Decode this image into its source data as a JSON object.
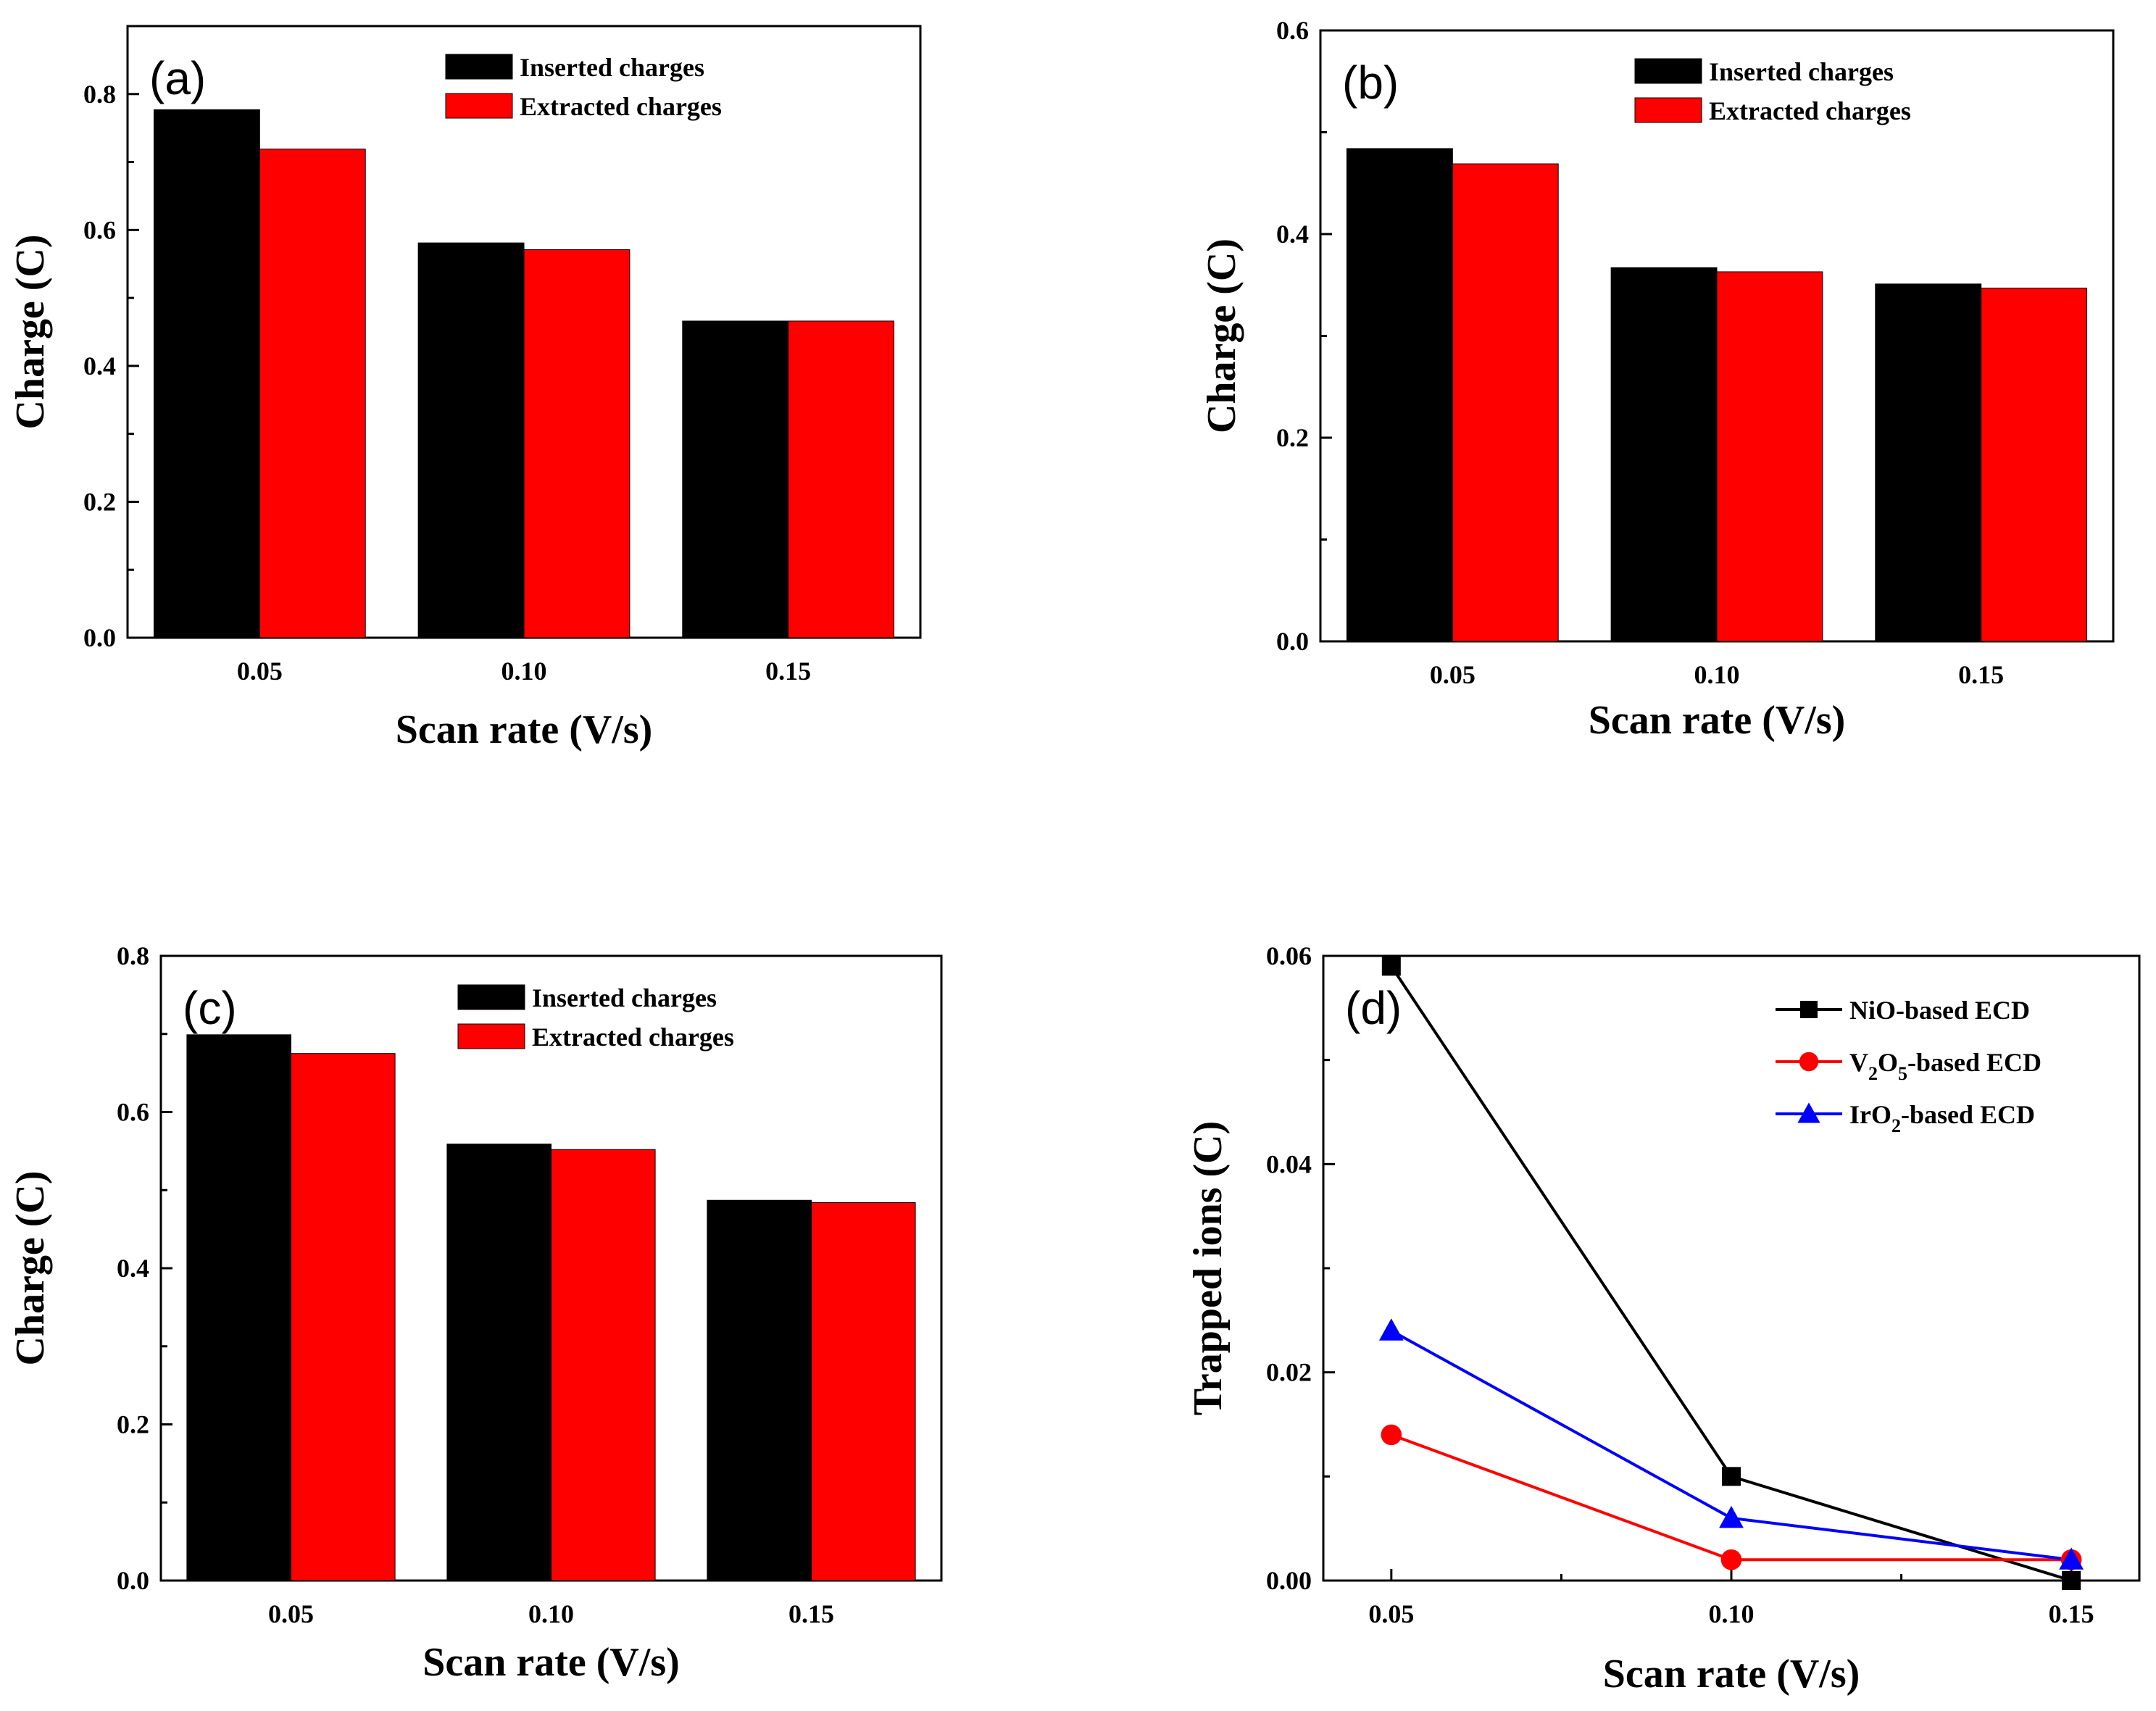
{
  "chart_data": [
    {
      "panel": "(a)",
      "type": "bar",
      "categories": [
        "0.05",
        "0.10",
        "0.15"
      ],
      "series": [
        {
          "name": "Inserted charges",
          "color": "#000000",
          "values": [
            0.777,
            0.581,
            0.466
          ]
        },
        {
          "name": "Extracted charges",
          "color": "#ff0000",
          "values": [
            0.719,
            0.571,
            0.466
          ]
        }
      ],
      "xlabel": "Scan rate (V/s)",
      "ylabel": "Charge (C)",
      "ylim": [
        0,
        0.9
      ],
      "yticks": [
        0.0,
        0.2,
        0.4,
        0.6,
        0.8
      ],
      "ytick_labels": [
        "0.0",
        "0.2",
        "0.4",
        "0.6",
        "0.8"
      ],
      "legend": "top"
    },
    {
      "panel": "(b)",
      "type": "bar",
      "categories": [
        "0.05",
        "0.10",
        "0.15"
      ],
      "series": [
        {
          "name": "Inserted charges",
          "color": "#000000",
          "values": [
            0.484,
            0.367,
            0.351
          ]
        },
        {
          "name": "Extracted charges",
          "color": "#ff0000",
          "values": [
            0.469,
            0.363,
            0.347
          ]
        }
      ],
      "xlabel": "Scan rate (V/s)",
      "ylabel": "Charge (C)",
      "ylim": [
        0,
        0.6
      ],
      "yticks": [
        0.0,
        0.2,
        0.4,
        0.6
      ],
      "ytick_labels": [
        "0.0",
        "0.2",
        "0.4",
        "0.6"
      ],
      "legend": "top"
    },
    {
      "panel": "(c)",
      "type": "bar",
      "categories": [
        "0.05",
        "0.10",
        "0.15"
      ],
      "series": [
        {
          "name": "Inserted charges",
          "color": "#000000",
          "values": [
            0.699,
            0.559,
            0.487
          ]
        },
        {
          "name": "Extracted charges",
          "color": "#ff0000",
          "values": [
            0.675,
            0.552,
            0.484
          ]
        }
      ],
      "xlabel": "Scan rate (V/s)",
      "ylabel": "Charge (C)",
      "ylim": [
        0,
        0.8
      ],
      "yticks": [
        0.0,
        0.2,
        0.4,
        0.6,
        0.8
      ],
      "ytick_labels": [
        "0.0",
        "0.2",
        "0.4",
        "0.6",
        "0.8"
      ],
      "legend": "top"
    },
    {
      "panel": "(d)",
      "type": "line",
      "x": [
        0.05,
        0.1,
        0.15
      ],
      "xticks": [
        0.05,
        0.1,
        0.15
      ],
      "xtick_labels": [
        "0.05",
        "0.10",
        "0.15"
      ],
      "xlim": [
        0.04,
        0.16
      ],
      "series": [
        {
          "name": "NiO-based ECD",
          "label_parts": [
            [
              "NiO-based ECD",
              ""
            ]
          ],
          "color": "#000000",
          "marker": "square",
          "values": [
            0.059,
            0.01,
            0.0
          ]
        },
        {
          "name": "V2O5-based ECD",
          "label_parts": [
            [
              "V",
              ""
            ],
            [
              "2",
              "sub"
            ],
            [
              "O",
              ""
            ],
            [
              "5",
              "sub"
            ],
            [
              "-based ECD",
              ""
            ]
          ],
          "color": "#ff0000",
          "marker": "circle",
          "values": [
            0.014,
            0.002,
            0.002
          ]
        },
        {
          "name": "IrO2-based ECD",
          "label_parts": [
            [
              "IrO",
              ""
            ],
            [
              "2",
              "sub"
            ],
            [
              "-based ECD",
              ""
            ]
          ],
          "color": "#0000ff",
          "marker": "triangle",
          "values": [
            0.024,
            0.006,
            0.002
          ]
        }
      ],
      "xlabel": "Scan rate (V/s)",
      "ylabel": "Trapped ions (C)",
      "ylim": [
        0,
        0.06
      ],
      "yticks": [
        0.0,
        0.02,
        0.04,
        0.06
      ],
      "ytick_labels": [
        "0.00",
        "0.02",
        "0.04",
        "0.06"
      ],
      "legend": "top-right"
    }
  ]
}
